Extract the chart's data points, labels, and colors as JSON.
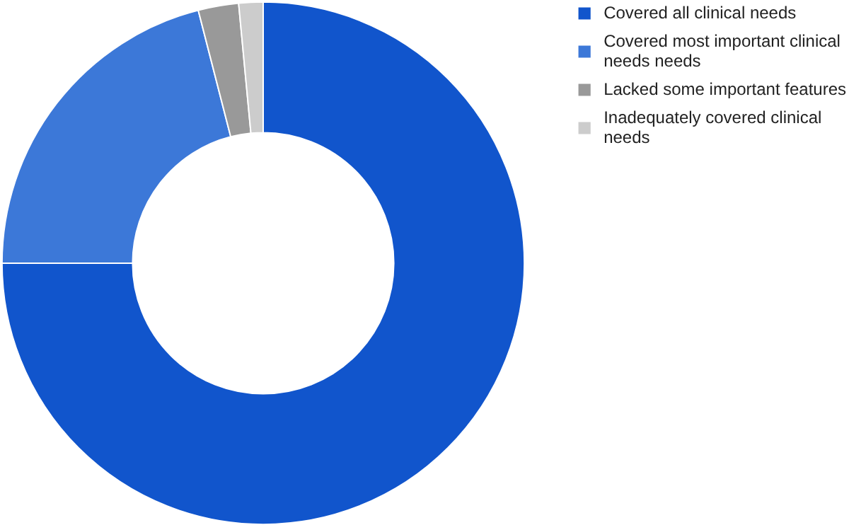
{
  "chart_data": {
    "type": "donut",
    "categories": [
      "Covered all clinical needs",
      "Covered most important clinical needs needs",
      "Lacked some important features",
      "Inadequately covered clinical needs"
    ],
    "values": [
      75,
      21,
      2.5,
      1.5
    ],
    "colors": [
      "#1155cc",
      "#3c78d8",
      "#999999",
      "#cccccc"
    ],
    "legend": "right"
  }
}
